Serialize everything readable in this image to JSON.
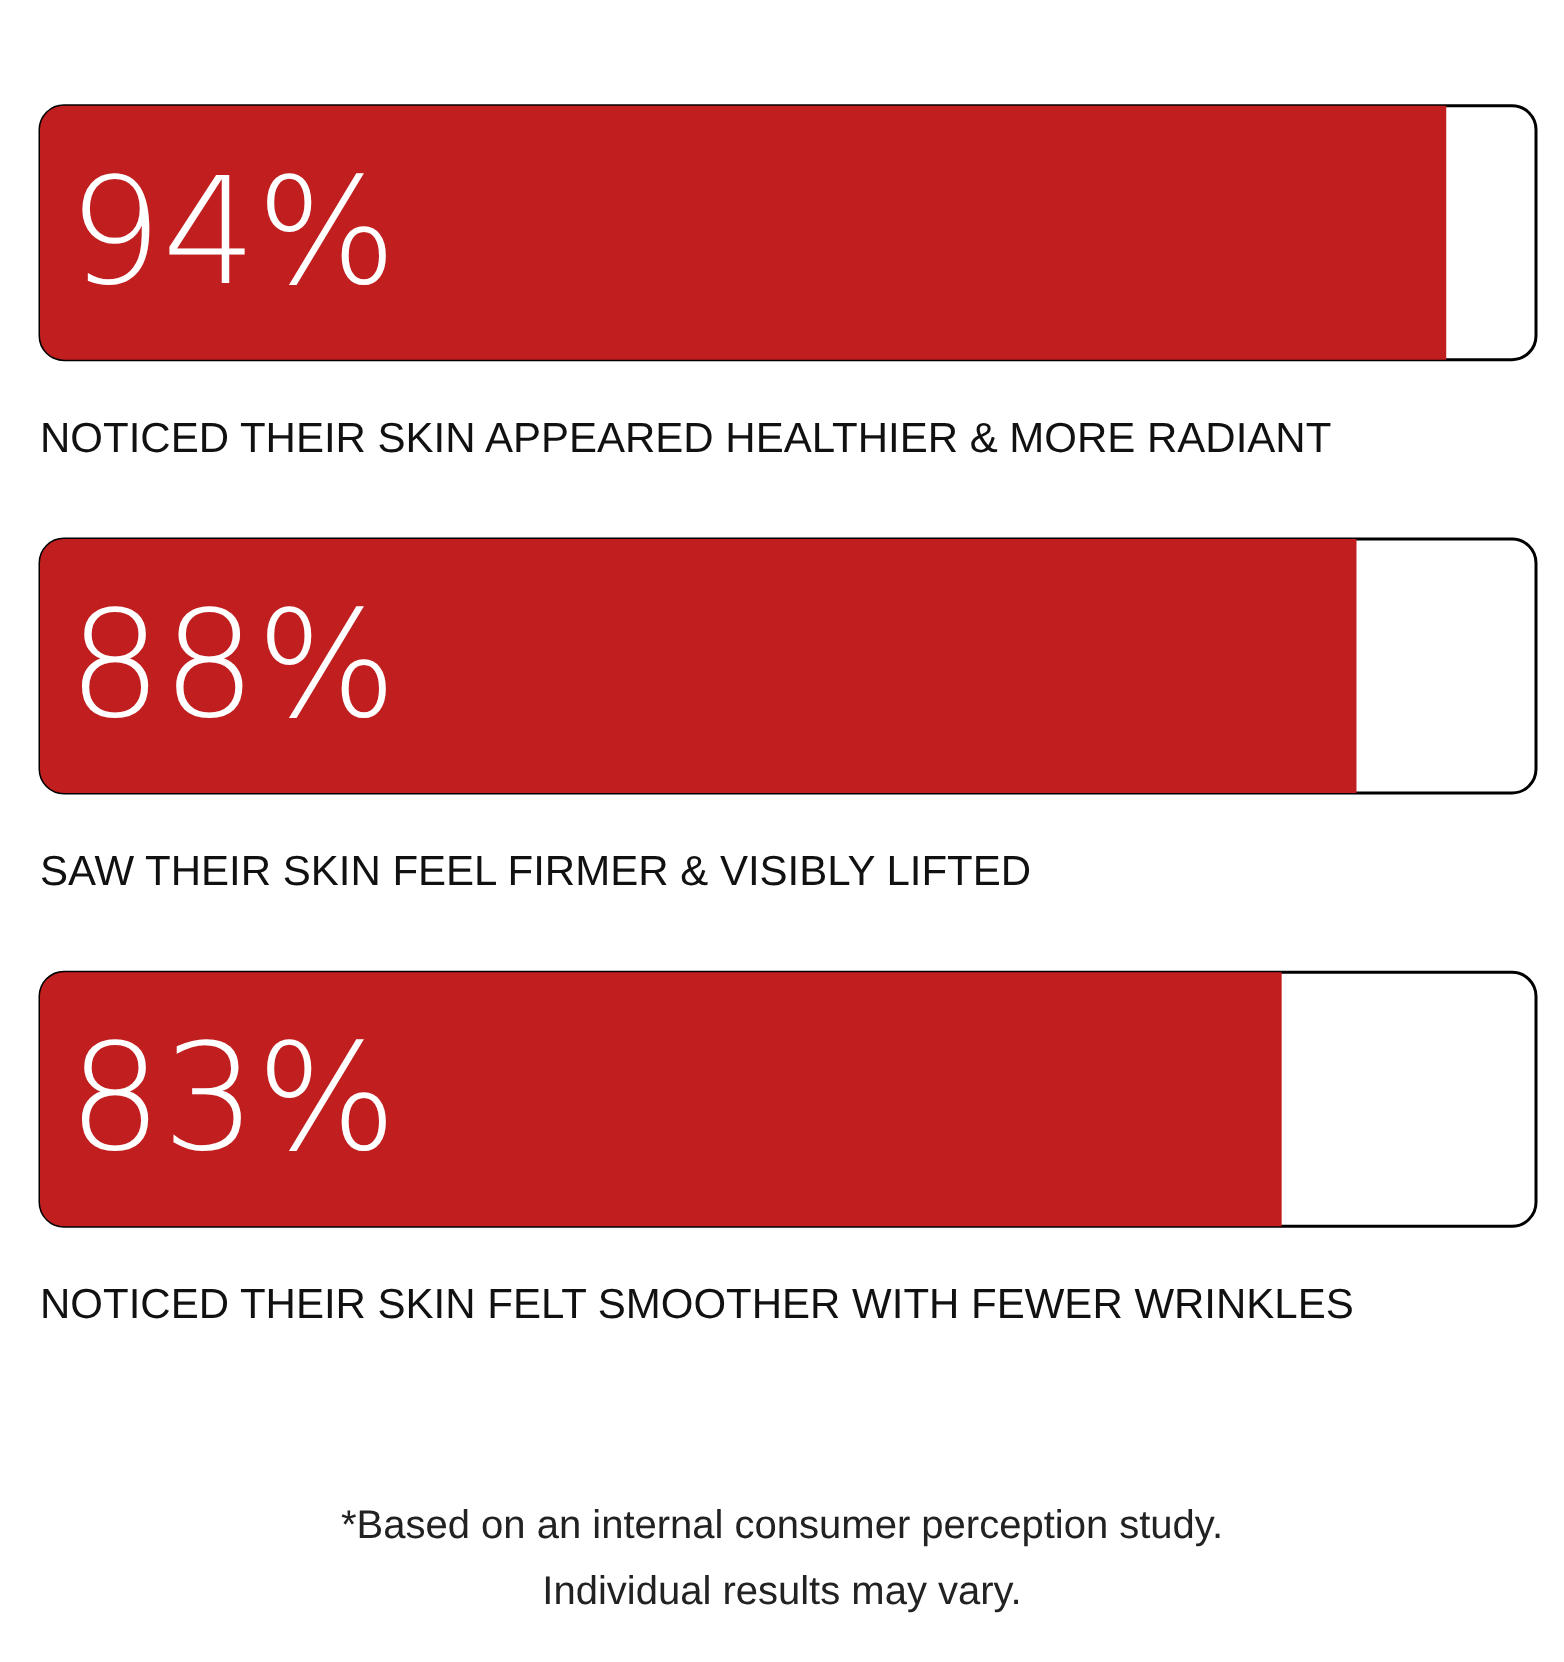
{
  "chart_data": {
    "type": "bar",
    "orientation": "horizontal",
    "categories": [
      "NOTICED THEIR SKIN APPEARED HEALTHIER & MORE RADIANT",
      "SAW THEIR SKIN FEEL FIRMER & VISIBLY LIFTED",
      "NOTICED THEIR SKIN FELT SMOOTHER WITH FEWER WRINKLES"
    ],
    "values": [
      94,
      88,
      83
    ],
    "value_labels": [
      "94%",
      "88%",
      "83%"
    ],
    "color": "#c11f1f",
    "annotations": [
      "*Based on an internal consumer perception study.",
      "Individual results may vary."
    ]
  }
}
